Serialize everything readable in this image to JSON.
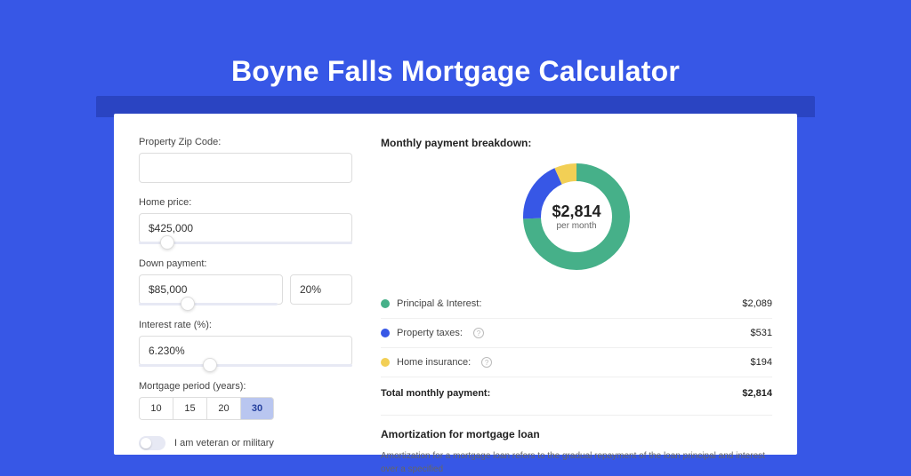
{
  "header": {
    "title": "Boyne Falls Mortgage Calculator"
  },
  "colors": {
    "page_bg": "#3757e6",
    "shadow_band": "#2a44c2",
    "card_bg": "#ffffff",
    "principal": "#46b089",
    "taxes": "#3757e6",
    "insurance": "#f2cf55",
    "input_border": "#dddddd",
    "period_selected_bg": "#b9c6f0"
  },
  "form": {
    "zip": {
      "label": "Property Zip Code:",
      "value": ""
    },
    "home_price": {
      "label": "Home price:",
      "value": "$425,000",
      "slider_pct": 10
    },
    "down_payment": {
      "label": "Down payment:",
      "amount": "$85,000",
      "percent": "20%",
      "slider_pct": 20
    },
    "interest": {
      "label": "Interest rate (%):",
      "value": "6.230%",
      "slider_pct": 30
    },
    "period": {
      "label": "Mortgage period (years):",
      "options": [
        "10",
        "15",
        "20",
        "30"
      ],
      "selected": "30"
    },
    "veteran": {
      "label": "I am veteran or military",
      "checked": false
    }
  },
  "breakdown": {
    "title": "Monthly payment breakdown:",
    "donut": {
      "type": "donut",
      "center_value": "$2,814",
      "center_sub": "per month",
      "segments": [
        {
          "key": "principal",
          "value": 2089,
          "color": "#46b089"
        },
        {
          "key": "taxes",
          "value": 531,
          "color": "#3757e6"
        },
        {
          "key": "insurance",
          "value": 194,
          "color": "#f2cf55"
        }
      ],
      "stroke_width": 20,
      "radius": 50
    },
    "items": [
      {
        "label": "Principal & Interest:",
        "value": "$2,089",
        "color": "#46b089",
        "help": false
      },
      {
        "label": "Property taxes:",
        "value": "$531",
        "color": "#3757e6",
        "help": true
      },
      {
        "label": "Home insurance:",
        "value": "$194",
        "color": "#f2cf55",
        "help": true
      }
    ],
    "total": {
      "label": "Total monthly payment:",
      "value": "$2,814"
    }
  },
  "amortization": {
    "title": "Amortization for mortgage loan",
    "text": "Amortization for a mortgage loan refers to the gradual repayment of the loan principal and interest over a specified"
  }
}
